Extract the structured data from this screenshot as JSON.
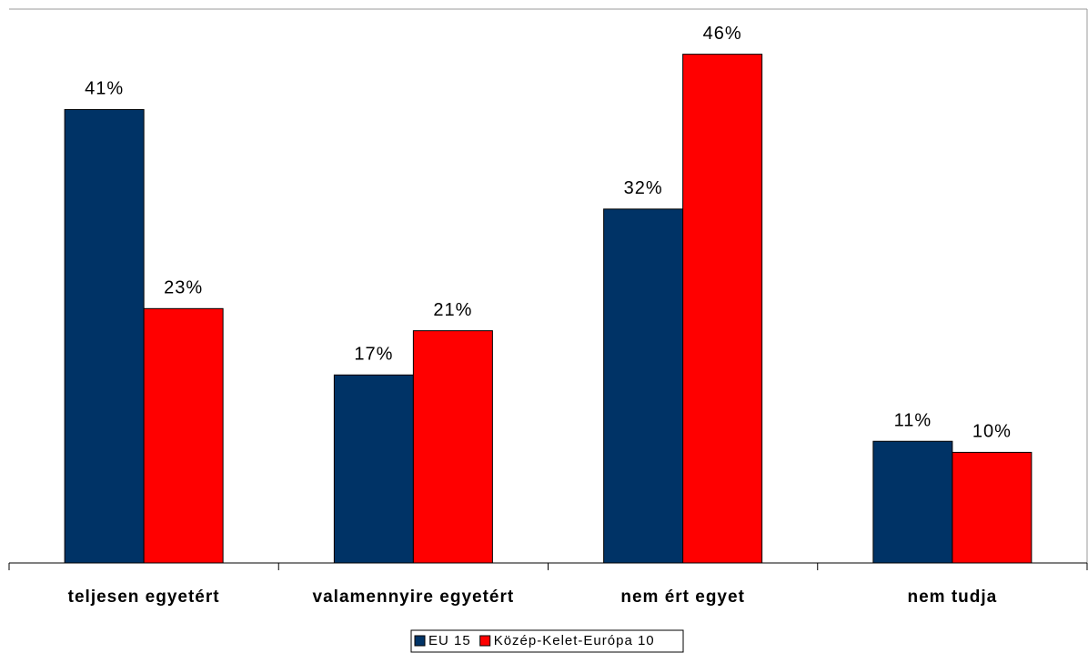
{
  "chart_data": {
    "type": "bar",
    "categories": [
      "teljesen egyetért",
      "valamennyire egyetért",
      "nem ért egyet",
      "nem tudja"
    ],
    "series": [
      {
        "name": "EU 15",
        "color": "#003366",
        "values": [
          41,
          17,
          32,
          11
        ],
        "value_labels": [
          "41%",
          "17%",
          "32%",
          "11%"
        ]
      },
      {
        "name": "Közép-Kelet-Európa 10",
        "color": "#ff0000",
        "values": [
          23,
          21,
          46,
          10
        ],
        "value_labels": [
          "23%",
          "21%",
          "46%",
          "10%"
        ]
      }
    ],
    "ylim": [
      0,
      50
    ]
  }
}
